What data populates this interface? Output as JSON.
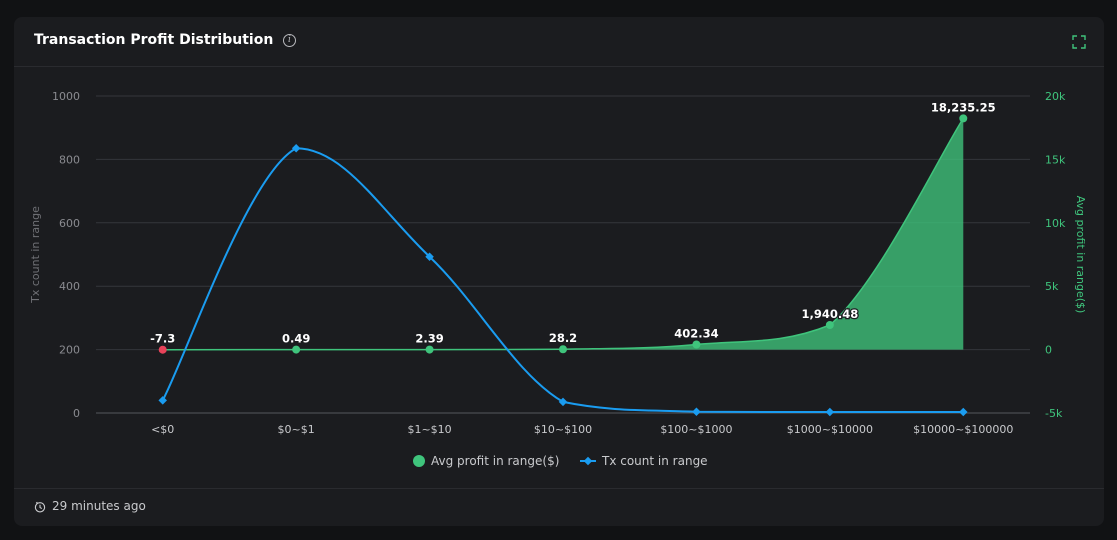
{
  "header": {
    "title": "Transaction Profit Distribution",
    "info_icon": "info-circle-icon",
    "expand_icon": "expand-icon"
  },
  "footer": {
    "clock_icon": "clock-icon",
    "updated": "29 minutes ago"
  },
  "colors": {
    "avg_profit": "#3fc47c",
    "tx_count": "#1a9cf0",
    "negative_point": "#e8435a",
    "grid": "#34363b",
    "axis_text": "#8a8b90",
    "right_axis_text": "#3fc47c"
  },
  "chart_data": {
    "type": "line",
    "categories": [
      "<$0",
      "$0~$1",
      "$1~$10",
      "$10~$100",
      "$100~$1000",
      "$1000~$10000",
      "$10000~$100000"
    ],
    "series": [
      {
        "name": "Avg profit in range($)",
        "axis": "right",
        "style": "area",
        "values": [
          -7.3,
          0.49,
          2.39,
          28.2,
          402.34,
          1940.48,
          18235.25
        ],
        "labels": [
          "-7.3",
          "0.49",
          "2.39",
          "28.2",
          "402.34",
          "1,940.48",
          "18,235.25"
        ]
      },
      {
        "name": "Tx count in range",
        "axis": "left",
        "style": "line",
        "values": [
          40,
          835,
          493,
          35,
          4,
          3,
          3
        ]
      }
    ],
    "left_axis": {
      "label": "Tx count in range",
      "range": [
        0,
        1000
      ],
      "ticks": [
        0,
        200,
        400,
        600,
        800,
        1000
      ],
      "tick_labels": [
        "0",
        "200",
        "400",
        "600",
        "800",
        "1000"
      ]
    },
    "right_axis": {
      "label": "Avg profit in range($)",
      "range": [
        -5000,
        20000
      ],
      "ticks": [
        -5000,
        0,
        5000,
        10000,
        15000,
        20000
      ],
      "tick_labels": [
        "-5k",
        "0",
        "5k",
        "10k",
        "15k",
        "20k"
      ]
    },
    "legend": {
      "placement": "bottom-center",
      "items": [
        "Avg profit in range($)",
        "Tx count in range"
      ]
    },
    "grid": true
  }
}
